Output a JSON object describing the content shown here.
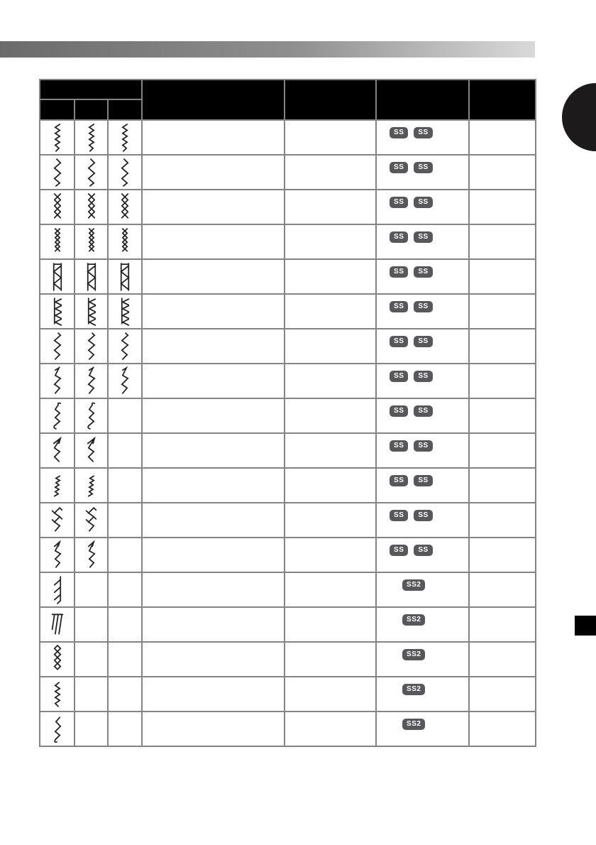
{
  "page": {
    "background": "#ffffff",
    "kind": "stitch-setting-chart-page"
  },
  "top_bar": {
    "gradient_from": "#6b6b6b",
    "gradient_mid": "#8f8f8f",
    "gradient_to": "#d9d9d9"
  },
  "side_tabs": {
    "chapter_tab_color": "#1d1a1b",
    "index_tab_color": "#000000"
  },
  "table": {
    "grid_color": "#848484",
    "header_bg": "#000000",
    "stitch_color": "#222222",
    "badge": {
      "bg": "#58585a",
      "text_color": "#ffffff"
    },
    "rows": [
      {
        "glyph": "serpentine-stitch",
        "stitch_columns": 3,
        "badges": [
          "SS",
          "SS"
        ]
      },
      {
        "glyph": "wide-zigzag-stitch",
        "stitch_columns": 3,
        "badges": [
          "SS",
          "SS"
        ]
      },
      {
        "glyph": "cross-stitch",
        "stitch_columns": 3,
        "badges": [
          "SS",
          "SS"
        ]
      },
      {
        "glyph": "triangle-chain-stitch",
        "stitch_columns": 3,
        "badges": [
          "SS",
          "SS"
        ]
      },
      {
        "glyph": "ladder-net-stitch",
        "stitch_columns": 3,
        "badges": [
          "SS",
          "SS"
        ]
      },
      {
        "glyph": "overcast-chevron-stitch",
        "stitch_columns": 3,
        "badges": [
          "SS",
          "SS"
        ]
      },
      {
        "glyph": "loose-zigzag-stitch",
        "stitch_columns": 3,
        "badges": [
          "SS",
          "SS"
        ]
      },
      {
        "glyph": "serif-zigzag-stitch",
        "stitch_columns": 3,
        "badges": [
          "SS",
          "SS"
        ]
      },
      {
        "glyph": "squiggle-hook-stitch",
        "stitch_columns": 2,
        "badges": [
          "SS",
          "SS"
        ]
      },
      {
        "glyph": "arrow-zigzag-stitch",
        "stitch_columns": 2,
        "badges": [
          "SS",
          "SS"
        ]
      },
      {
        "glyph": "dense-diagonal-stitch",
        "stitch_columns": 2,
        "badges": [
          "SS",
          "SS"
        ]
      },
      {
        "glyph": "ticked-zigzag-stitch",
        "stitch_columns": 2,
        "badges": [
          "SS",
          "SS"
        ]
      },
      {
        "glyph": "double-arrow-zigzag-stitch",
        "stitch_columns": 2,
        "badges": [
          "SS",
          "SS"
        ]
      },
      {
        "glyph": "blind-hem-right-stitch",
        "stitch_columns": 1,
        "badges": [
          "SS2"
        ]
      },
      {
        "glyph": "blind-hem-top-stitch",
        "stitch_columns": 1,
        "badges": [
          "SS2"
        ]
      },
      {
        "glyph": "diamond-chain-stitch",
        "stitch_columns": 1,
        "badges": [
          "SS2"
        ]
      },
      {
        "glyph": "tight-zigzag-stitch",
        "stitch_columns": 1,
        "badges": [
          "SS2"
        ]
      },
      {
        "glyph": "loose-zigzag-hook-stitch",
        "stitch_columns": 1,
        "badges": [
          "SS2"
        ]
      }
    ]
  }
}
